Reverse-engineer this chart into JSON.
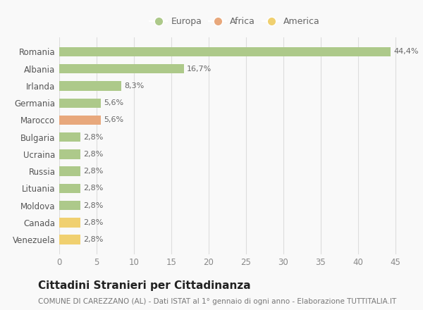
{
  "countries": [
    "Romania",
    "Albania",
    "Irlanda",
    "Germania",
    "Marocco",
    "Bulgaria",
    "Ucraina",
    "Russia",
    "Lituania",
    "Moldova",
    "Canada",
    "Venezuela"
  ],
  "values": [
    44.4,
    16.7,
    8.3,
    5.6,
    5.6,
    2.8,
    2.8,
    2.8,
    2.8,
    2.8,
    2.8,
    2.8
  ],
  "labels": [
    "44,4%",
    "16,7%",
    "8,3%",
    "5,6%",
    "5,6%",
    "2,8%",
    "2,8%",
    "2,8%",
    "2,8%",
    "2,8%",
    "2,8%",
    "2,8%"
  ],
  "categories": [
    "Europa",
    "Europa",
    "Europa",
    "Europa",
    "Africa",
    "Europa",
    "Europa",
    "Europa",
    "Europa",
    "Europa",
    "America",
    "America"
  ],
  "colors": {
    "Europa": "#adc98a",
    "Africa": "#e8a87c",
    "America": "#f0d070"
  },
  "legend_labels": [
    "Europa",
    "Africa",
    "America"
  ],
  "legend_colors": [
    "#adc98a",
    "#e8a87c",
    "#f0d070"
  ],
  "title": "Cittadini Stranieri per Cittadinanza",
  "subtitle": "COMUNE DI CAREZZANO (AL) - Dati ISTAT al 1° gennaio di ogni anno - Elaborazione TUTTITALIA.IT",
  "xlim": [
    0,
    47
  ],
  "xticks": [
    0,
    5,
    10,
    15,
    20,
    25,
    30,
    35,
    40,
    45
  ],
  "background_color": "#f9f9f9",
  "grid_color": "#dddddd",
  "bar_height": 0.55,
  "title_fontsize": 11,
  "subtitle_fontsize": 7.5,
  "tick_fontsize": 8.5,
  "label_fontsize": 8,
  "legend_fontsize": 9
}
